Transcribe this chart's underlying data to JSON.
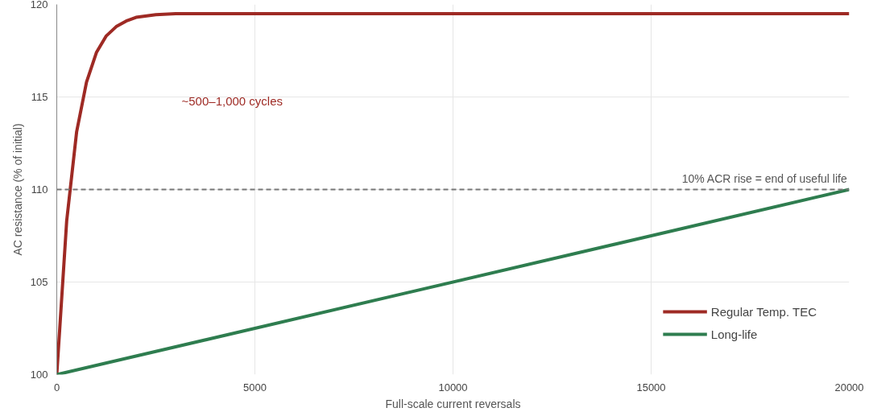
{
  "chart_data": {
    "type": "line",
    "xlabel": "Full-scale current reversals",
    "ylabel": "AC resistance (% of initial)",
    "xlim": [
      0,
      20000
    ],
    "xticks": [
      0,
      5000,
      10000,
      15000,
      20000
    ],
    "ylim": [
      100,
      120
    ],
    "yticks": [
      100,
      105,
      110,
      115,
      120
    ],
    "grid": true,
    "legend": "bottom right",
    "line_style": "solid",
    "marker": "none",
    "series": [
      {
        "name": "Regular Temp. TEC",
        "color": "#9e2a24",
        "x": [
          0,
          250,
          500,
          750,
          1000,
          1250,
          1500,
          1750,
          2000,
          2500,
          3000,
          20000
        ],
        "values": [
          100,
          108.3,
          113.1,
          115.8,
          117.4,
          118.3,
          118.8,
          119.1,
          119.3,
          119.45,
          119.5,
          119.5
        ]
      },
      {
        "name": "Long-life",
        "color": "#2e7d4f",
        "x": [
          0,
          20000
        ],
        "values": [
          100,
          110
        ]
      }
    ],
    "ref_lines": [
      {
        "axis": "y",
        "value": 110,
        "label": "10% ACR rise = end of useful life",
        "color": "#777777",
        "line_style": "dashed"
      }
    ],
    "annotations": [
      "~500–1,000 cycles"
    ]
  }
}
